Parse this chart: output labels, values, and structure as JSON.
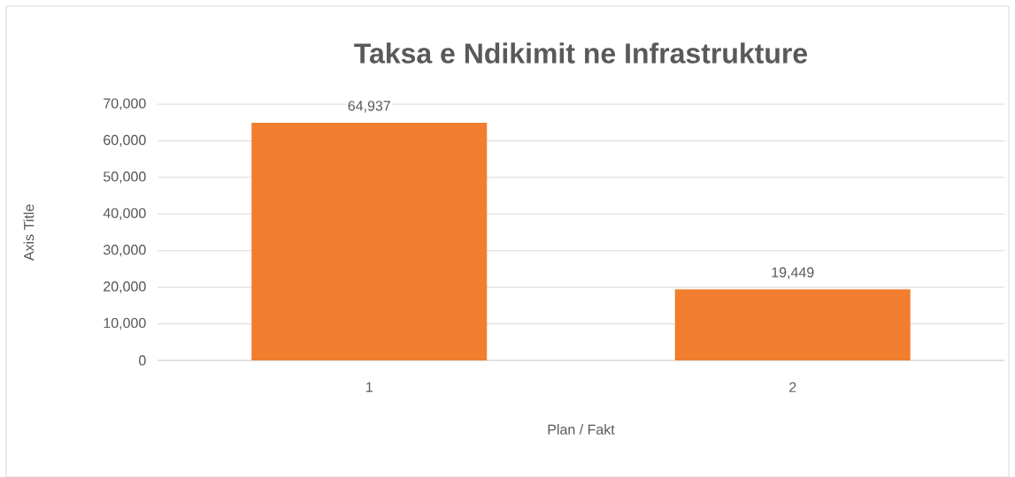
{
  "chart_data": {
    "type": "bar",
    "title": "Taksa e Ndikimit ne Infrastrukture",
    "xlabel": "Plan / Fakt",
    "ylabel": "Axis Title",
    "categories": [
      "1",
      "2"
    ],
    "values": [
      64937,
      19449
    ],
    "value_labels": [
      "64,937",
      "19,449"
    ],
    "color": "#f07e2e",
    "ylim": [
      0,
      70000
    ],
    "yticks": [
      {
        "value": 0,
        "label": "0"
      },
      {
        "value": 10000,
        "label": "10,000"
      },
      {
        "value": 20000,
        "label": "20,000"
      },
      {
        "value": 30000,
        "label": "30,000"
      },
      {
        "value": 40000,
        "label": "40,000"
      },
      {
        "value": 50000,
        "label": "50,000"
      },
      {
        "value": 60000,
        "label": "60,000"
      },
      {
        "value": 70000,
        "label": "70,000"
      }
    ],
    "grid": "y"
  }
}
